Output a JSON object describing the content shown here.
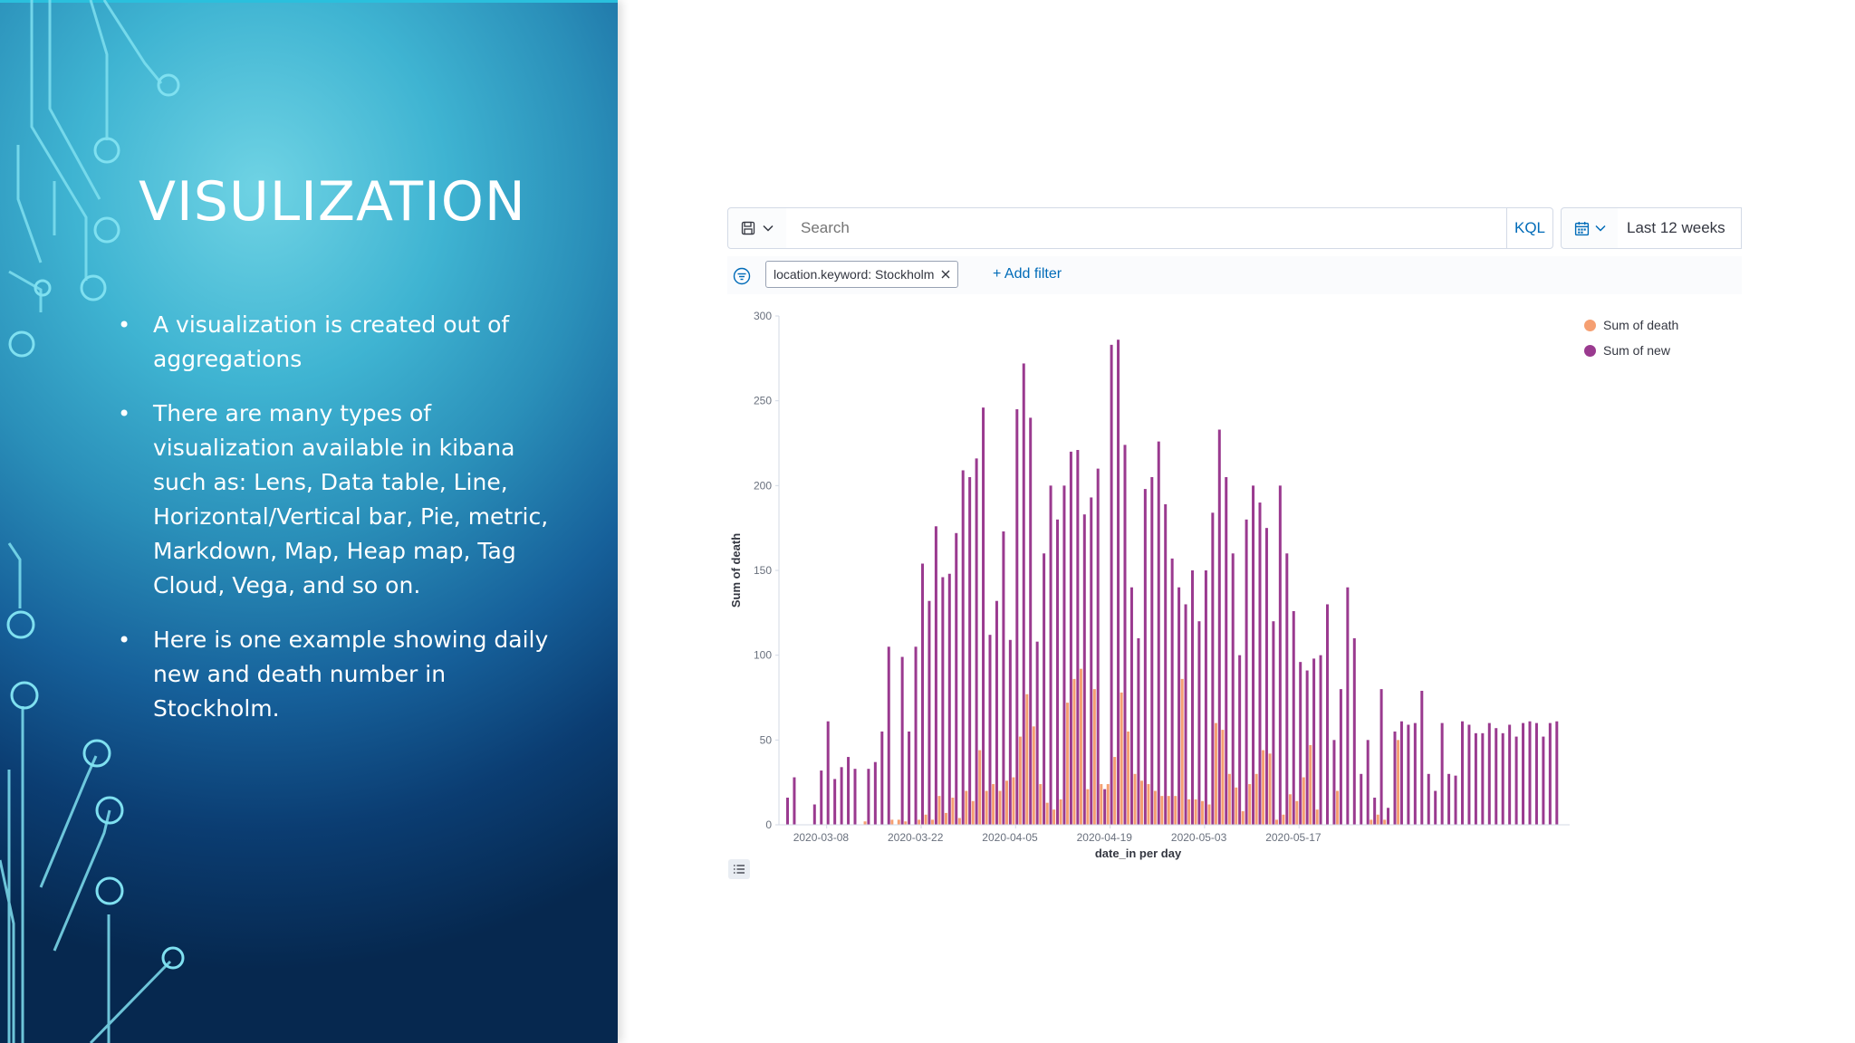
{
  "slide": {
    "title": "VISULIZATION",
    "bullets": [
      "A visualization is created out of aggregations",
      "There are many types of visualization available in kibana such as: Lens, Data table, Line, Horizontal/Vertical bar, Pie, metric, Markdown, Map, Heap map, Tag Cloud, Vega, and so on.",
      "Here is one example showing daily new and death number in Stockholm."
    ]
  },
  "kibana": {
    "search_placeholder": "Search",
    "kql_label": "KQL",
    "date_range": "Last 12 weeks",
    "filter_pill": "location.keyword: Stockholm",
    "add_filter": "+ Add filter",
    "icons": {
      "saved_query": "save-icon",
      "calendar": "calendar-icon",
      "filter": "filter-icon",
      "close": "close-icon",
      "list": "list-icon"
    }
  },
  "chart_data": {
    "type": "bar",
    "xlabel": "date_in per day",
    "ylabel": "Sum of death",
    "ylim": [
      0,
      300
    ],
    "yticks": [
      0,
      50,
      100,
      150,
      200,
      250,
      300
    ],
    "xtick_labels": [
      "2020-03-08",
      "2020-03-22",
      "2020-04-05",
      "2020-04-19",
      "2020-05-03",
      "2020-05-17"
    ],
    "xtick_indices": [
      6,
      20,
      34,
      48,
      62,
      76
    ],
    "legend_position": "top-right",
    "series": [
      {
        "name": "Sum of new",
        "color": "#9a3a8f",
        "values": [
          16,
          28,
          0,
          0,
          12,
          32,
          61,
          27,
          34,
          40,
          33,
          0,
          33,
          37,
          55,
          105,
          0,
          99,
          55,
          105,
          154,
          132,
          176,
          146,
          148,
          172,
          209,
          205,
          216,
          246,
          112,
          132,
          173,
          109,
          245,
          272,
          240,
          108,
          160,
          200,
          180,
          200,
          220,
          221,
          183,
          193,
          210,
          21,
          283,
          286,
          224,
          140,
          110,
          198,
          205,
          226,
          189,
          157,
          140,
          130,
          150,
          120,
          150,
          184,
          233,
          205,
          160,
          100,
          180,
          200,
          190,
          175,
          120,
          200,
          160,
          126,
          96,
          91,
          98,
          100,
          130,
          50,
          80,
          140,
          110,
          30,
          50,
          16,
          80,
          10,
          55,
          61,
          59,
          60,
          79,
          30,
          20,
          60,
          30,
          29,
          61,
          59,
          54,
          54,
          60,
          57,
          54,
          59,
          52,
          60,
          61,
          60,
          52,
          60,
          61
        ]
      },
      {
        "name": "Sum of death",
        "color": "#f59f72",
        "values": [
          0,
          0,
          0,
          0,
          0,
          0,
          0,
          0,
          0,
          0,
          0,
          2,
          0,
          0,
          0,
          3,
          3,
          2,
          0,
          3,
          6,
          3,
          17,
          7,
          16,
          4,
          20,
          14,
          44,
          20,
          24,
          20,
          26,
          28,
          52,
          77,
          58,
          24,
          13,
          9,
          15,
          72,
          86,
          92,
          21,
          80,
          24,
          24,
          40,
          78,
          55,
          30,
          26,
          24,
          20,
          17,
          17,
          17,
          86,
          15,
          15,
          14,
          12,
          60,
          56,
          30,
          22,
          8,
          24,
          30,
          44,
          42,
          3,
          6,
          18,
          14,
          28,
          47,
          9,
          0,
          0,
          20,
          0,
          0,
          0,
          0,
          3,
          6,
          3,
          0,
          50,
          0,
          0,
          0,
          0,
          0,
          0,
          0,
          0,
          0,
          0,
          0,
          0,
          0,
          0,
          0,
          0,
          0,
          0,
          0,
          0,
          0,
          0,
          0,
          0
        ]
      }
    ]
  }
}
